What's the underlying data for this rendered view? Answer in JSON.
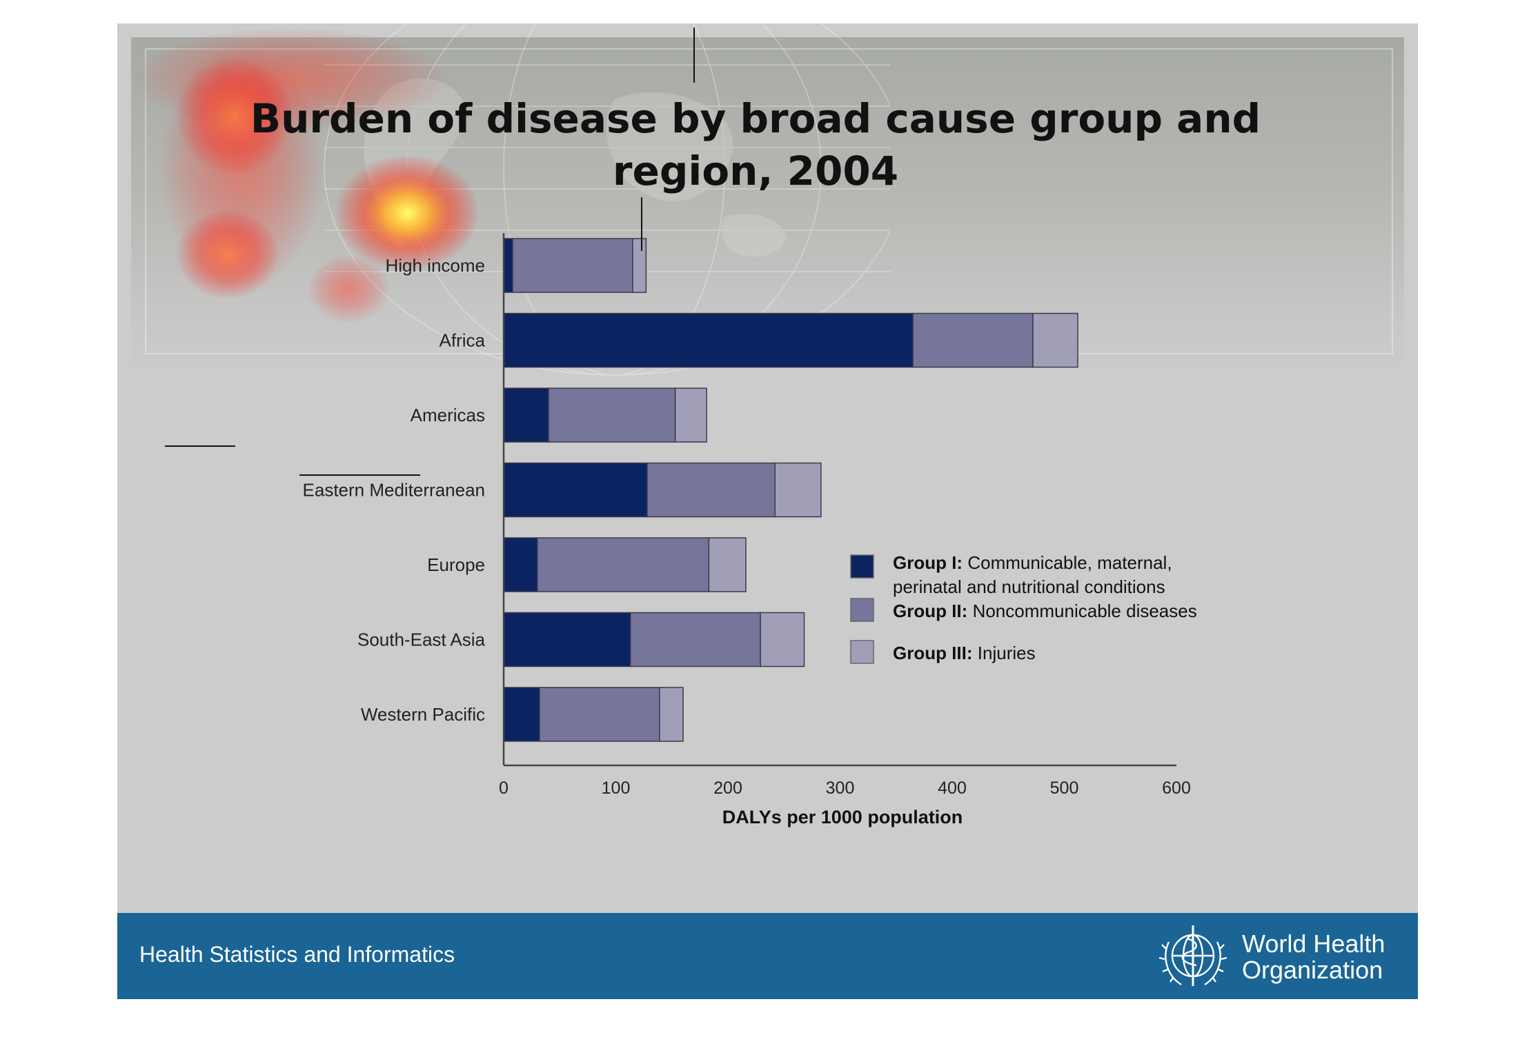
{
  "slide": {
    "title_line1": "Burden of disease by broad cause group and",
    "title_line2": "region, 2004"
  },
  "footer": {
    "text": "Health Statistics and Informatics",
    "org_line1": "World Health",
    "org_line2": "Organization"
  },
  "colors": {
    "group1": "#0b2361",
    "group2": "#76759b",
    "group3": "#a09fb7",
    "footer": "#1a6595"
  },
  "chart_data": {
    "type": "bar",
    "orientation": "horizontal",
    "stacked": true,
    "categories": [
      "High income",
      "Africa",
      "Americas",
      "Eastern Mediterranean",
      "Europe",
      "South-East Asia",
      "Western Pacific"
    ],
    "series": [
      {
        "name": "Group I: Communicable, maternal, perinatal and nutritional conditions",
        "values": [
          8,
          365,
          40,
          128,
          30,
          113,
          32
        ]
      },
      {
        "name": "Group II: Noncommunicable diseases",
        "values": [
          107,
          107,
          113,
          114,
          153,
          116,
          107
        ]
      },
      {
        "name": "Group III: Injuries",
        "values": [
          12,
          40,
          28,
          41,
          33,
          39,
          21
        ]
      }
    ],
    "xlabel": "DALYs per 1000 population",
    "xlim": [
      0,
      600
    ],
    "xticks": [
      "0",
      "100",
      "200",
      "300",
      "400",
      "500",
      "600"
    ],
    "legend": {
      "position": "right",
      "entries": [
        {
          "bold": "Group I:",
          "text_line1": "Communicable, maternal,",
          "text_line2": "perinatal and nutritional conditions"
        },
        {
          "bold": "Group II:",
          "text_line1": "Noncommunicable diseases"
        },
        {
          "bold": "Group III:",
          "text_line1": "Injuries"
        }
      ]
    },
    "grid": false
  }
}
